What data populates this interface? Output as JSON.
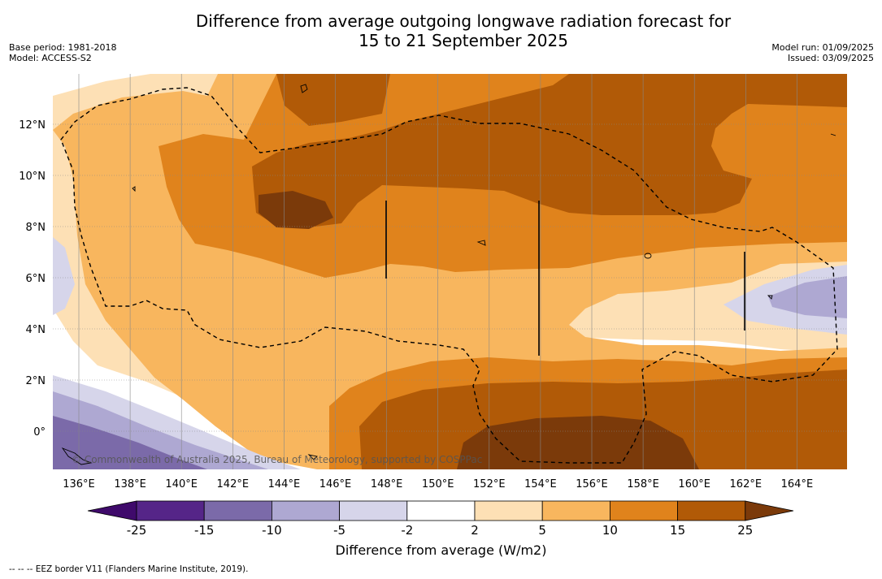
{
  "title": {
    "line1": "Difference from average outgoing longwave radiation forecast for",
    "line2": "15 to 21 September 2025"
  },
  "meta_left": {
    "base_period": "Base period: 1981-2018",
    "model": "Model: ACCESS-S2"
  },
  "meta_right": {
    "model_run": "Model run: 01/09/2025",
    "issued": "Issued: 03/09/2025"
  },
  "map": {
    "lon_ticks": [
      "136°E",
      "138°E",
      "140°E",
      "142°E",
      "144°E",
      "146°E",
      "148°E",
      "150°E",
      "152°E",
      "154°E",
      "156°E",
      "158°E",
      "160°E",
      "162°E",
      "164°E"
    ],
    "lat_ticks": [
      "0°",
      "2°N",
      "4°N",
      "6°N",
      "8°N",
      "10°N",
      "12°N"
    ],
    "copyright": "© Commonwealth of Australia 2025, Bureau of Meteorology, supported by COSPPac",
    "eez_label": "EEZ border V11 (Flanders Marine Institute, 2019)."
  },
  "colorbar": {
    "ticks": [
      "-25",
      "-15",
      "-10",
      "-5",
      "-2",
      "2",
      "5",
      "10",
      "15",
      "25"
    ],
    "colors": [
      "#3f0a6b",
      "#552588",
      "#7b6aa9",
      "#aea8d2",
      "#d6d5ea",
      "#ffffff",
      "#fde0b5",
      "#f8b65e",
      "#e0831c",
      "#b15a07",
      "#7b3a0a"
    ],
    "label": "Difference from average (W/m2)"
  },
  "footnote": "--  --  -- EEZ border V11 (Flanders Marine Institute, 2019)."
}
